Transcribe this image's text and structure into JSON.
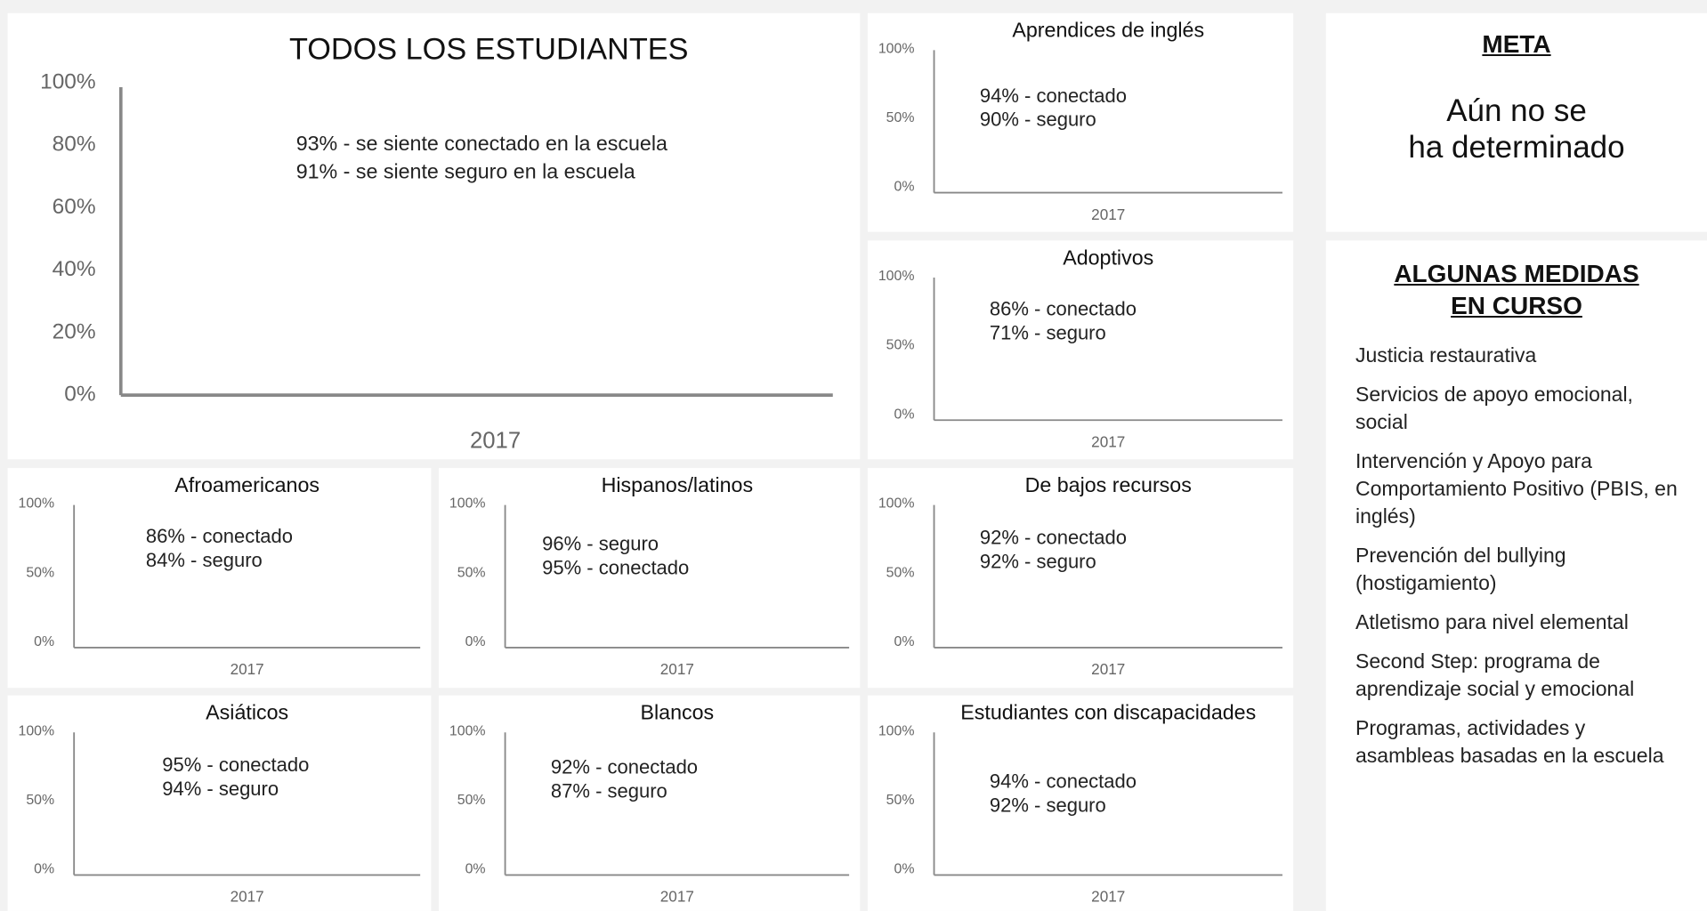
{
  "chart_data": [
    {
      "type": "bar",
      "title": "TODOS LOS ESTUDIANTES",
      "categories": [
        "2017"
      ],
      "ylim": [
        0,
        100
      ],
      "yticks": [
        {
          "value": 0,
          "label": "0%"
        },
        {
          "value": 20,
          "label": "20%"
        },
        {
          "value": 40,
          "label": "40%"
        },
        {
          "value": 60,
          "label": "60%"
        },
        {
          "value": 80,
          "label": "80%"
        },
        {
          "value": 100,
          "label": "100%"
        }
      ],
      "annotations": [
        "93% - se siente conectado en la escuela",
        "91% - se siente seguro en la escuela"
      ]
    },
    {
      "type": "bar",
      "title": "Aprendices de inglés",
      "categories": [
        "2017"
      ],
      "ylim": [
        0,
        100
      ],
      "yticks": [
        {
          "value": 0,
          "label": "0%"
        },
        {
          "value": 50,
          "label": "50%"
        },
        {
          "value": 100,
          "label": "100%"
        }
      ],
      "annotations": [
        "94% - conectado",
        "90% - seguro"
      ]
    },
    {
      "type": "bar",
      "title": "Adoptivos",
      "categories": [
        "2017"
      ],
      "ylim": [
        0,
        100
      ],
      "yticks": [
        {
          "value": 0,
          "label": "0%"
        },
        {
          "value": 50,
          "label": "50%"
        },
        {
          "value": 100,
          "label": "100%"
        }
      ],
      "annotations": [
        "86% - conectado",
        "71% - seguro"
      ]
    },
    {
      "type": "bar",
      "title": "Afroamericanos",
      "categories": [
        "2017"
      ],
      "ylim": [
        0,
        100
      ],
      "yticks": [
        {
          "value": 0,
          "label": "0%"
        },
        {
          "value": 50,
          "label": "50%"
        },
        {
          "value": 100,
          "label": "100%"
        }
      ],
      "annotations": [
        "86% - conectado",
        "84% - seguro"
      ]
    },
    {
      "type": "bar",
      "title": "Hispanos/latinos",
      "categories": [
        "2017"
      ],
      "ylim": [
        0,
        100
      ],
      "yticks": [
        {
          "value": 0,
          "label": "0%"
        },
        {
          "value": 50,
          "label": "50%"
        },
        {
          "value": 100,
          "label": "100%"
        }
      ],
      "annotations": [
        "96% - seguro",
        "95% - conectado"
      ]
    },
    {
      "type": "bar",
      "title": "De bajos recursos",
      "categories": [
        "2017"
      ],
      "ylim": [
        0,
        100
      ],
      "yticks": [
        {
          "value": 0,
          "label": "0%"
        },
        {
          "value": 50,
          "label": "50%"
        },
        {
          "value": 100,
          "label": "100%"
        }
      ],
      "annotations": [
        "92% - conectado",
        "92% - seguro"
      ]
    },
    {
      "type": "bar",
      "title": "Asiáticos",
      "categories": [
        "2017"
      ],
      "ylim": [
        0,
        100
      ],
      "yticks": [
        {
          "value": 0,
          "label": "0%"
        },
        {
          "value": 50,
          "label": "50%"
        },
        {
          "value": 100,
          "label": "100%"
        }
      ],
      "annotations": [
        "95% - conectado",
        "94% - seguro"
      ]
    },
    {
      "type": "bar",
      "title": "Blancos",
      "categories": [
        "2017"
      ],
      "ylim": [
        0,
        100
      ],
      "yticks": [
        {
          "value": 0,
          "label": "0%"
        },
        {
          "value": 50,
          "label": "50%"
        },
        {
          "value": 100,
          "label": "100%"
        }
      ],
      "annotations": [
        "92% - conectado",
        "87% - seguro"
      ]
    },
    {
      "type": "bar",
      "title": "Estudiantes con discapacidades",
      "categories": [
        "2017"
      ],
      "ylim": [
        0,
        100
      ],
      "yticks": [
        {
          "value": 0,
          "label": "0%"
        },
        {
          "value": 50,
          "label": "50%"
        },
        {
          "value": 100,
          "label": "100%"
        }
      ],
      "annotations": [
        "94% - conectado",
        "92% - seguro"
      ]
    }
  ],
  "sidebar": {
    "goal": {
      "heading": "META",
      "lines": [
        "Aún no se",
        "ha determinado"
      ]
    },
    "measures": {
      "heading_lines": [
        "ALGUNAS MEDIDAS",
        "EN CURSO"
      ],
      "items": [
        "Justicia restaurativa",
        "Servicios de apoyo emocional, social",
        "Intervención y Apoyo para Comportamiento Positivo (PBIS, en inglés)",
        "Prevención del bullying (hostigamiento)",
        "Atletismo para nivel elemental",
        "Second Step: programa de aprendizaje social y emocional",
        "Programas, actividades y asambleas basadas en la escuela"
      ]
    }
  }
}
